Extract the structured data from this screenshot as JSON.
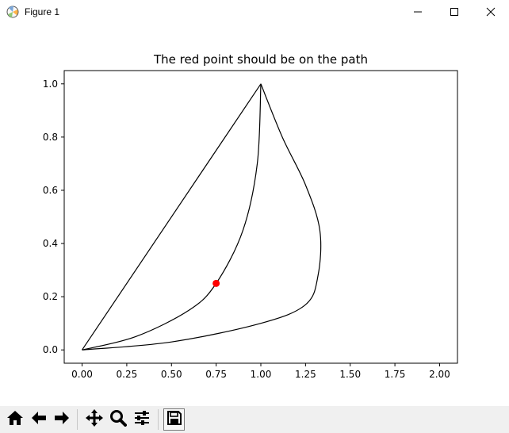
{
  "window": {
    "title": "Figure 1",
    "icon": "matplotlib-icon",
    "controls": [
      "minimize-icon",
      "maximize-icon",
      "close-icon"
    ]
  },
  "toolbar": {
    "buttons": [
      {
        "name": "home-button",
        "icon": "home-icon"
      },
      {
        "name": "back-button",
        "icon": "arrow-left-icon"
      },
      {
        "name": "forward-button",
        "icon": "arrow-right-icon"
      },
      {
        "name": "pan-button",
        "icon": "move-icon"
      },
      {
        "name": "zoom-button",
        "icon": "magnifier-icon"
      },
      {
        "name": "configure-subplots-button",
        "icon": "sliders-icon"
      },
      {
        "name": "save-button",
        "icon": "floppy-disk-icon"
      }
    ]
  },
  "chart_data": {
    "type": "line",
    "title": "The red point should be on the path",
    "xlabel": "",
    "ylabel": "",
    "xlim": [
      -0.1,
      2.1
    ],
    "ylim": [
      -0.05,
      1.05
    ],
    "xticks": [
      "0.00",
      "0.25",
      "0.50",
      "0.75",
      "1.00",
      "1.25",
      "1.50",
      "1.75",
      "2.00"
    ],
    "yticks": [
      "0.0",
      "0.2",
      "0.4",
      "0.6",
      "0.8",
      "1.0"
    ],
    "grid": false,
    "legend": "none",
    "path_color": "#000000",
    "series": [
      {
        "kind": "closed-path",
        "points": [
          [
            0,
            0
          ],
          [
            1,
            1
          ],
          [
            1.33,
            0.45
          ],
          [
            0,
            0
          ]
        ],
        "segments": [
          {
            "type": "line",
            "from": [
              0,
              0
            ],
            "to": [
              1,
              1
            ]
          },
          {
            "type": "curve",
            "points": [
              [
                1,
                1
              ],
              [
                1.12,
                0.8
              ],
              [
                1.25,
                0.62
              ],
              [
                1.33,
                0.45
              ],
              [
                1.32,
                0.28
              ],
              [
                1.25,
                0.17
              ],
              [
                1.0,
                0.1
              ],
              [
                0.5,
                0.03
              ],
              [
                0,
                0
              ]
            ]
          },
          {
            "type": "curve",
            "points": [
              [
                0,
                0
              ],
              [
                0.3,
                0.05
              ],
              [
                0.6,
                0.15
              ],
              [
                0.75,
                0.25
              ],
              [
                0.9,
                0.45
              ],
              [
                0.98,
                0.7
              ],
              [
                1.0,
                1.0
              ]
            ]
          }
        ]
      },
      {
        "kind": "point",
        "color": "#ff0000",
        "x": 0.75,
        "y": 0.25
      }
    ]
  }
}
